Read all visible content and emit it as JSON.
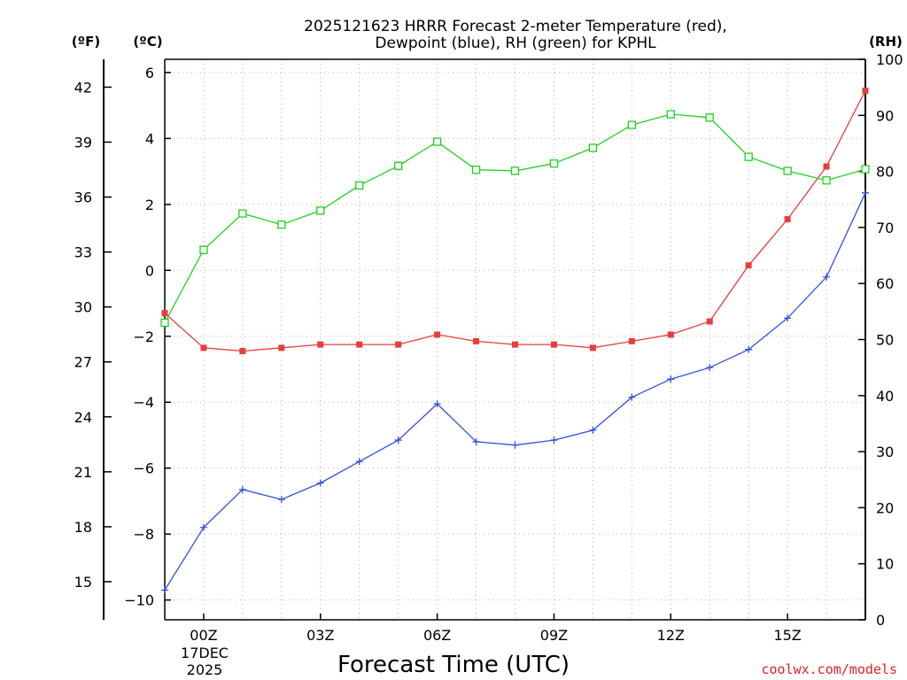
{
  "chart_data": {
    "type": "line",
    "title_line1": "2025121623 HRRR Forecast 2-meter Temperature (red),",
    "title_line2": "Dewpoint (blue), RH (green) for KPHL",
    "xlabel": "Forecast Time (UTC)",
    "credit": "coolwx.com/models",
    "date_line1": "17DEC",
    "date_line2": "2025",
    "units": {
      "fahrenheit": "(ºF)",
      "celsius": "(ºC)",
      "rh": "(RH)"
    },
    "x_hours": [
      23,
      24,
      25,
      26,
      27,
      28,
      29,
      30,
      31,
      32,
      33,
      34,
      35,
      36,
      37,
      38,
      39,
      40,
      41
    ],
    "xlim": [
      23,
      41
    ],
    "x_ticks": [
      {
        "hour": 24,
        "label": "00Z"
      },
      {
        "hour": 27,
        "label": "03Z"
      },
      {
        "hour": 30,
        "label": "06Z"
      },
      {
        "hour": 33,
        "label": "09Z"
      },
      {
        "hour": 36,
        "label": "12Z"
      },
      {
        "hour": 39,
        "label": "15Z"
      }
    ],
    "ylim_celsius": [
      -10.6,
      6.4
    ],
    "y_ticks_celsius": [
      "6",
      "4",
      "2",
      "0",
      "−2",
      "−4",
      "−6",
      "−8",
      "−10"
    ],
    "y_ticks_celsius_values": [
      6,
      4,
      2,
      0,
      -2,
      -4,
      -6,
      -8,
      -10
    ],
    "y_ticks_fahrenheit": [
      "42",
      "39",
      "36",
      "33",
      "30",
      "27",
      "24",
      "21",
      "18",
      "15"
    ],
    "y_ticks_fahrenheit_values": [
      42,
      39,
      36,
      33,
      30,
      27,
      24,
      21,
      18,
      15
    ],
    "ylim_rh": [
      0,
      100
    ],
    "y_ticks_rh": [
      "100",
      "90",
      "80",
      "70",
      "60",
      "50",
      "40",
      "30",
      "20",
      "10",
      "0"
    ],
    "y_ticks_rh_values": [
      100,
      90,
      80,
      70,
      60,
      50,
      40,
      30,
      20,
      10,
      0
    ],
    "series": [
      {
        "name": "Temperature",
        "color": "#e83c3c",
        "marker": "filled-square",
        "axis": "celsius",
        "values": [
          -1.3,
          -2.35,
          -2.45,
          -2.35,
          -2.25,
          -2.25,
          -2.25,
          -1.95,
          -2.15,
          -2.25,
          -2.25,
          -2.35,
          -2.15,
          -1.95,
          -1.55,
          0.15,
          1.55,
          3.15,
          5.45
        ]
      },
      {
        "name": "Dewpoint",
        "color": "#3050e0",
        "marker": "plus",
        "axis": "celsius",
        "values": [
          -9.7,
          -7.8,
          -6.65,
          -6.95,
          -6.45,
          -5.8,
          -5.15,
          -4.05,
          -5.2,
          -5.3,
          -5.15,
          -4.85,
          -3.85,
          -3.3,
          -2.95,
          -2.4,
          -1.45,
          -0.2,
          2.35
        ]
      },
      {
        "name": "RH",
        "color": "#20d020",
        "marker": "open-square",
        "axis": "rh",
        "values": [
          53,
          66,
          72.5,
          70.5,
          73,
          77.5,
          81,
          85.3,
          80.3,
          80.1,
          81.4,
          84.2,
          88.3,
          90.2,
          89.6,
          82.6,
          80.1,
          78.4,
          80.4
        ]
      }
    ]
  }
}
